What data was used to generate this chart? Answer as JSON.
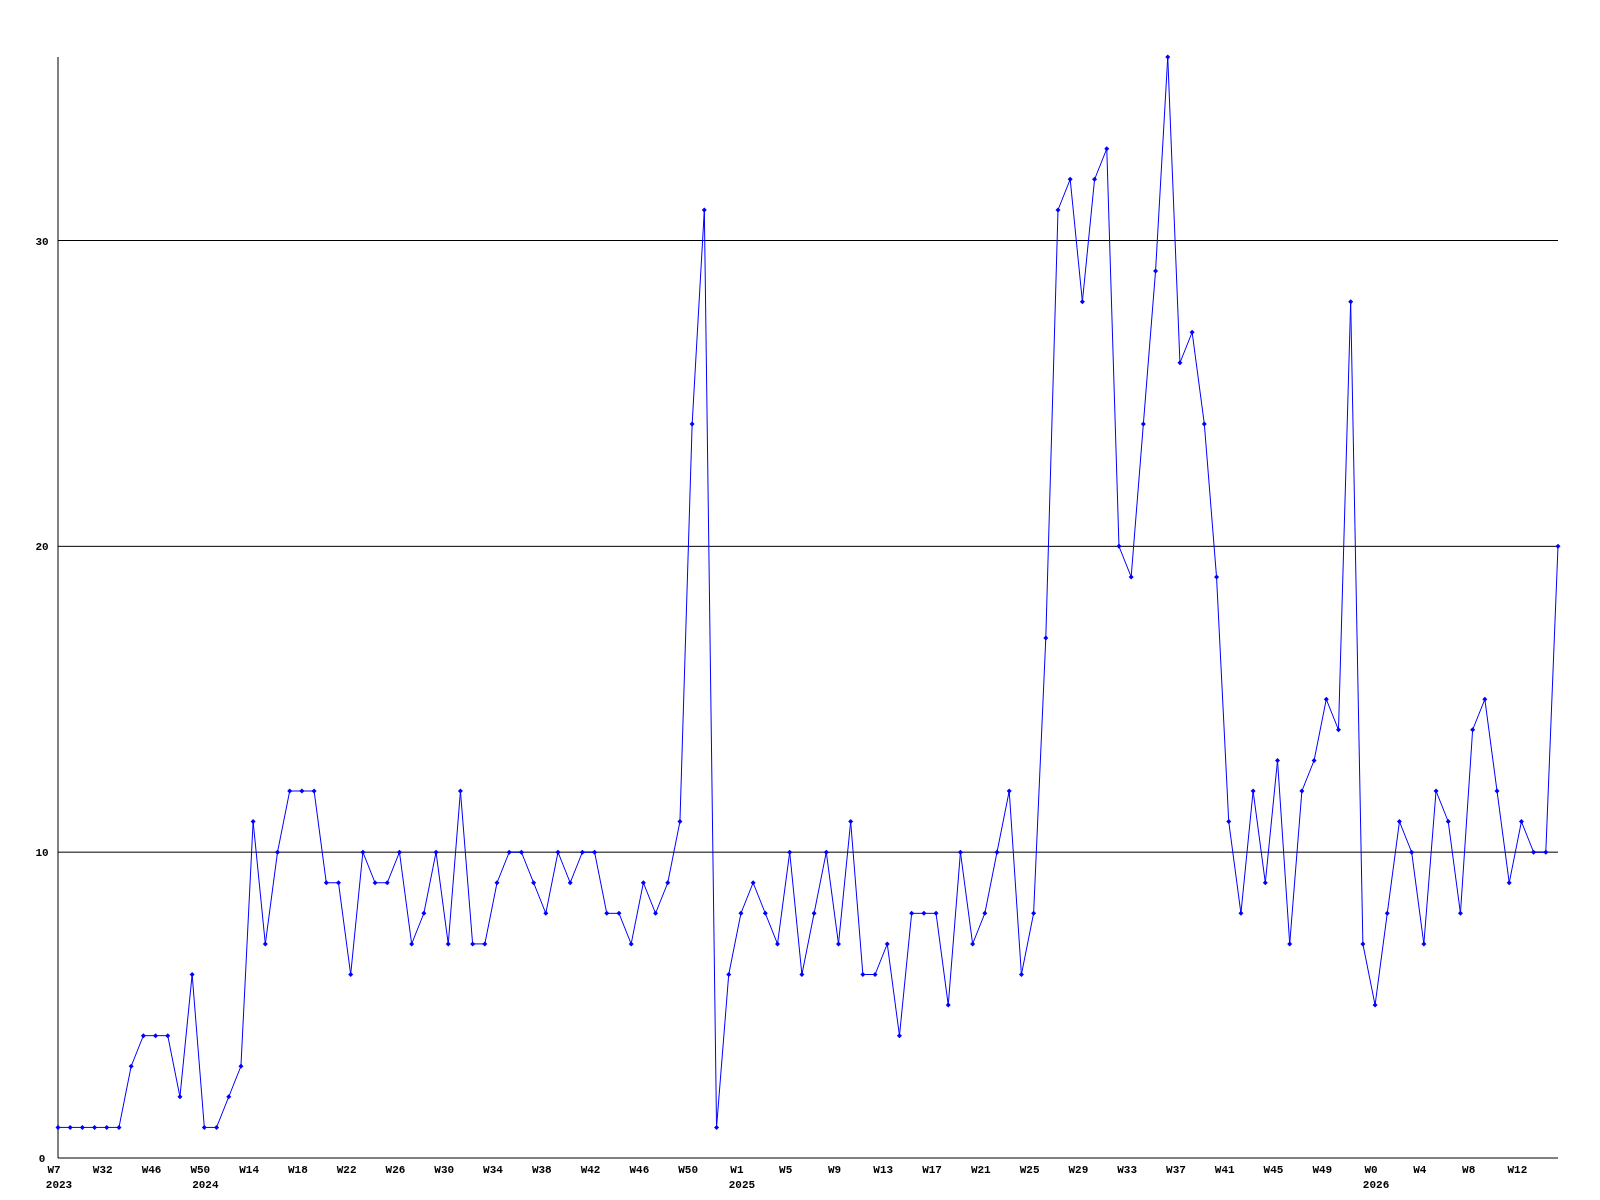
{
  "chart_data": {
    "type": "line",
    "categories": [
      "W7\n2023",
      null,
      null,
      null,
      "W32",
      null,
      null,
      null,
      "W46",
      null,
      null,
      null,
      "W50\n2024",
      null,
      null,
      null,
      "W14",
      null,
      null,
      null,
      "W18",
      null,
      null,
      null,
      "W22",
      null,
      null,
      null,
      "W26",
      null,
      null,
      null,
      "W30",
      null,
      null,
      null,
      "W34",
      null,
      null,
      null,
      "W38",
      null,
      null,
      null,
      "W42",
      null,
      null,
      null,
      "W46",
      null,
      null,
      null,
      "W50",
      null,
      null,
      null,
      "W1\n2025",
      null,
      null,
      null,
      "W5",
      null,
      null,
      null,
      "W9",
      null,
      null,
      null,
      "W13",
      null,
      null,
      null,
      "W17",
      null,
      null,
      null,
      "W21",
      null,
      null,
      null,
      "W25",
      null,
      null,
      null,
      "W29",
      null,
      null,
      null,
      "W33",
      null,
      null,
      null,
      "W37",
      null,
      null,
      null,
      "W41",
      null,
      null,
      null,
      "W45",
      null,
      null,
      null,
      "W49",
      null,
      null,
      null,
      "W0\n2026",
      null,
      null,
      null,
      "W4",
      null,
      null,
      null,
      "W8",
      null,
      null,
      null,
      "W12",
      null,
      null,
      null
    ],
    "series": [
      {
        "color": "#0000ff",
        "values": [
          1,
          1,
          1,
          1,
          1,
          1,
          3,
          4,
          4,
          4,
          2,
          6,
          1,
          1,
          2,
          3,
          11,
          7,
          10,
          12,
          12,
          12,
          9,
          9,
          6,
          10,
          9,
          9,
          10,
          7,
          8,
          10,
          7,
          12,
          7,
          7,
          9,
          10,
          10,
          9,
          8,
          10,
          9,
          10,
          10,
          8,
          8,
          7,
          9,
          8,
          9,
          11,
          24,
          31,
          1,
          6,
          8,
          9,
          8,
          7,
          10,
          6,
          8,
          10,
          7,
          11,
          6,
          6,
          7,
          4,
          8,
          8,
          8,
          5,
          10,
          7,
          8,
          10,
          12,
          6,
          8,
          17,
          31,
          32,
          28,
          32,
          33,
          20,
          19,
          24,
          29,
          36,
          26,
          27,
          24,
          19,
          11,
          8,
          12,
          9,
          13,
          7,
          12,
          13,
          15,
          14,
          28,
          7,
          5,
          8,
          11,
          10,
          7,
          12,
          11,
          8,
          14,
          15,
          12,
          9,
          11,
          10,
          10,
          20
        ]
      }
    ],
    "ylim": [
      0,
      36
    ],
    "yticks": [
      0,
      10,
      20,
      30
    ],
    "grid": "y",
    "marker": "diamond",
    "line_style": "solid"
  }
}
